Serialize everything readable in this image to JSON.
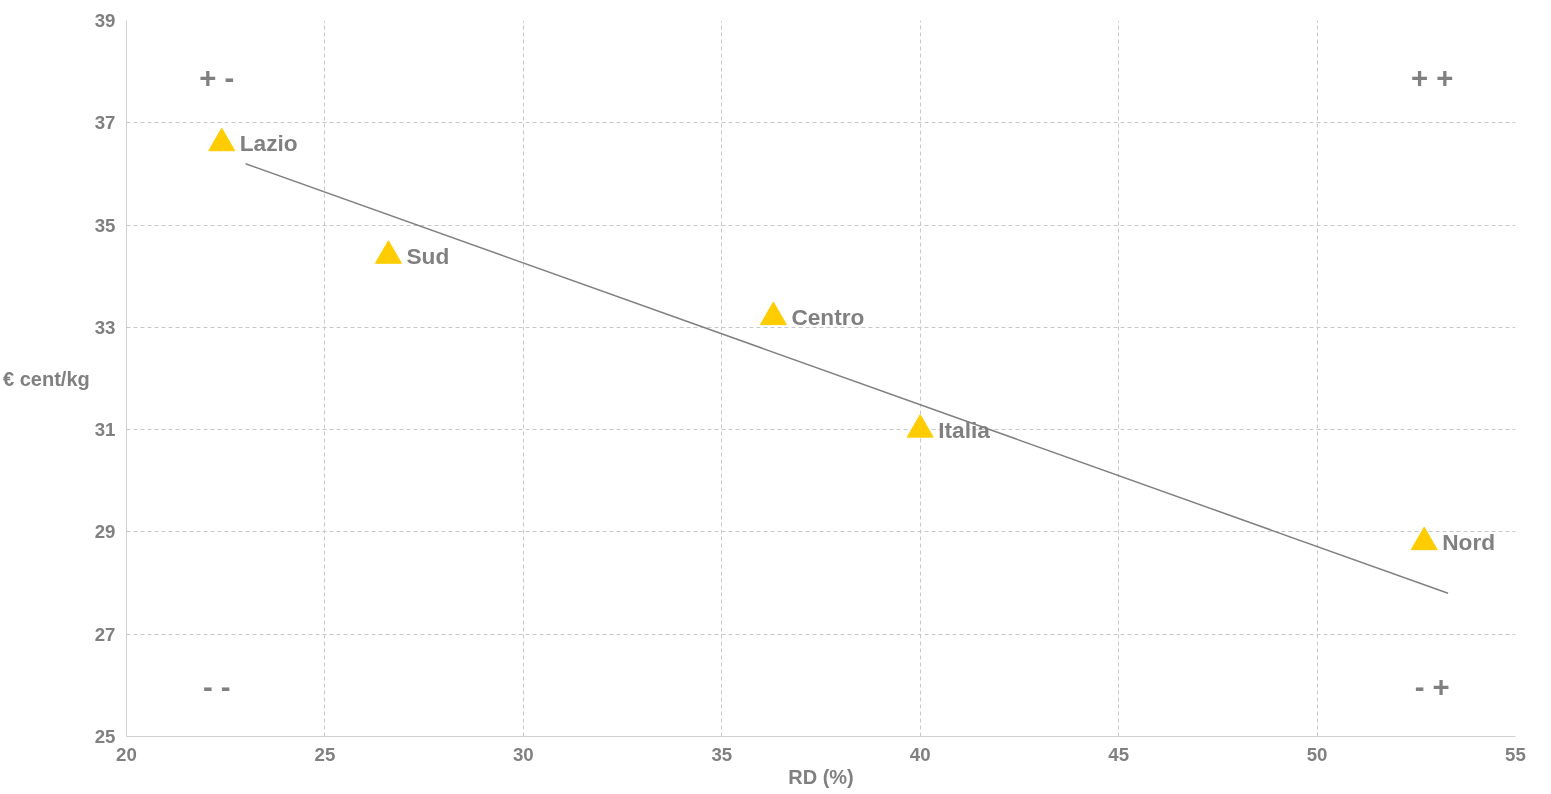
{
  "chart_data": {
    "type": "scatter",
    "xlabel": "RD (%)",
    "ylabel": "€ cent/kg",
    "xlim": [
      20,
      55
    ],
    "xticks": [
      20,
      25,
      30,
      35,
      40,
      45,
      50,
      55
    ],
    "ylim": [
      25,
      39
    ],
    "yticks": [
      25,
      27,
      29,
      31,
      33,
      35,
      37,
      39
    ],
    "grid": true,
    "marker": "triangle",
    "series": [
      {
        "color": "#ffcc00",
        "x": [
          22.4,
          26.6,
          36.3,
          40.0,
          52.7
        ],
        "values": [
          36.6,
          34.4,
          33.2,
          31.0,
          28.8
        ]
      },
      {
        "type": "line",
        "color": "#808080",
        "marker": "none",
        "x": [
          23.0,
          53.3
        ],
        "values": [
          36.2,
          27.8
        ]
      }
    ],
    "annotations": [
      {
        "text": "Lazio",
        "x": 22.4,
        "y": 36.6
      },
      {
        "text": "Sud",
        "x": 26.6,
        "y": 34.4
      },
      {
        "text": "Centro",
        "x": 36.3,
        "y": 33.2
      },
      {
        "text": "Italia",
        "x": 40.0,
        "y": 31.0
      },
      {
        "text": "Nord",
        "x": 52.7,
        "y": 28.8
      },
      "+ -",
      "+ +",
      "- -",
      "- +"
    ]
  }
}
